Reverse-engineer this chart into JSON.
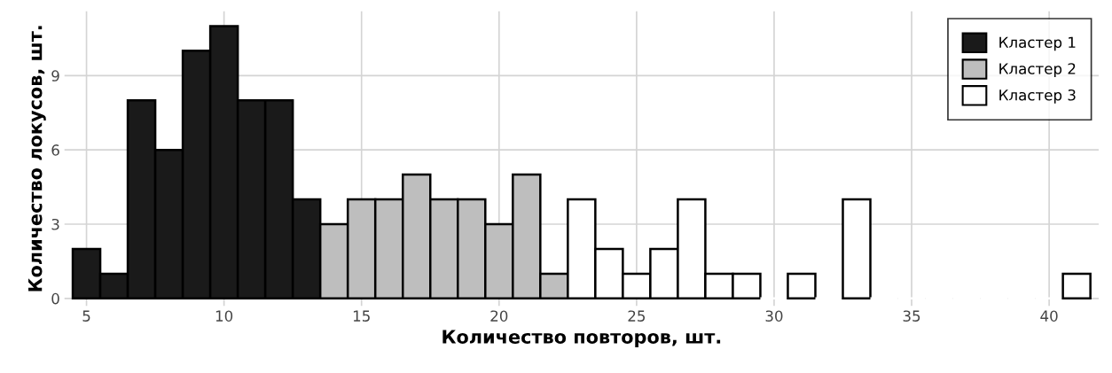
{
  "chart_data": {
    "type": "bar",
    "xlabel": "Количество повторов, шт.",
    "ylabel": "Количество локусов, шт.",
    "xlim": [
      4.2,
      41.8
    ],
    "xticks": [
      5,
      10,
      15,
      20,
      25,
      30,
      35,
      40
    ],
    "ylim": [
      -0.3,
      11.6
    ],
    "yticks": [
      0,
      3,
      6,
      9
    ],
    "grid": true,
    "legend": "top right",
    "series": [
      {
        "name": "Кластер 1",
        "color": "#1a1a1a",
        "x": [
          5,
          6,
          7,
          8,
          9,
          10,
          11,
          12,
          13
        ],
        "values": [
          2,
          1,
          8,
          6,
          10,
          11,
          8,
          8,
          4
        ]
      },
      {
        "name": "Кластер 2",
        "color": "#bebebe",
        "x": [
          14,
          15,
          16,
          17,
          18,
          19,
          20,
          21,
          22
        ],
        "values": [
          3,
          4,
          4,
          5,
          4,
          4,
          3,
          5,
          1
        ]
      },
      {
        "name": "Кластер 3",
        "color": "#ffffff",
        "x": [
          23,
          24,
          25,
          26,
          27,
          28,
          29,
          30,
          31,
          32,
          33,
          34,
          35,
          36,
          37,
          38,
          39,
          40,
          41
        ],
        "values": [
          4,
          2,
          1,
          2,
          4,
          1,
          1,
          0,
          1,
          0,
          4,
          0,
          0,
          0,
          0,
          0,
          0,
          0,
          1
        ]
      }
    ]
  }
}
